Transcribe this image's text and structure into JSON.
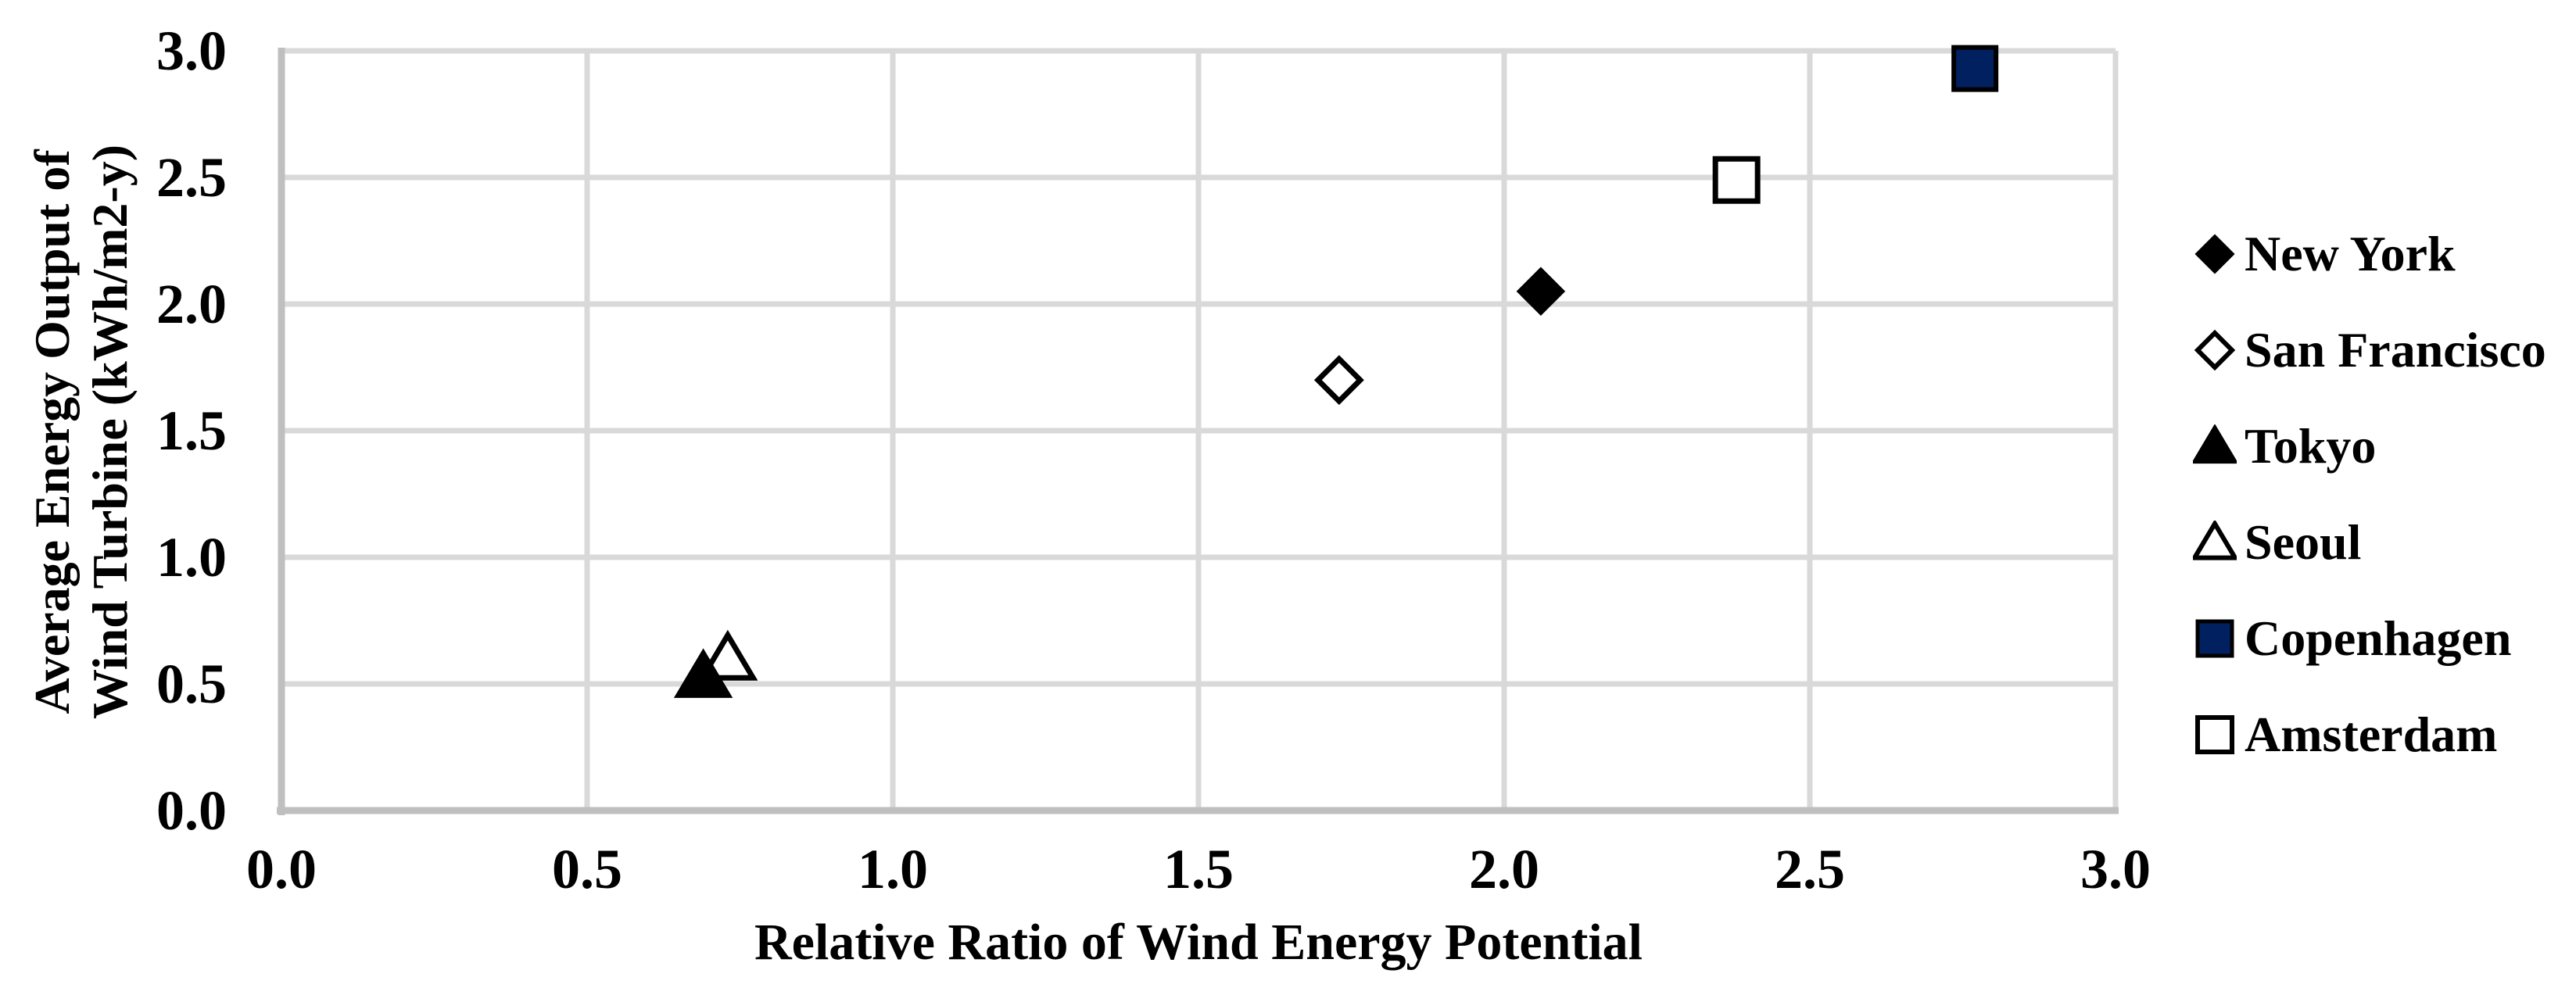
{
  "chart_data": {
    "type": "scatter",
    "xlabel": "Relative Ratio of Wind Energy Potential",
    "ylabel_lines": [
      "Average Energy Output of",
      "Wind Turbine (kWh/m2-y)"
    ],
    "xlim": [
      0.0,
      3.0
    ],
    "ylim": [
      0.0,
      3.0
    ],
    "x_ticks": [
      "0.0",
      "0.5",
      "1.0",
      "1.5",
      "2.0",
      "2.5",
      "3.0"
    ],
    "y_ticks": [
      "0.0",
      "0.5",
      "1.0",
      "1.5",
      "2.0",
      "2.5",
      "3.0"
    ],
    "grid": true,
    "legend_position": "right",
    "colors": {
      "gridline": "#d9d9d9",
      "axis": "#bfbfbf",
      "marker_black": "#000000",
      "marker_navy": "#002060",
      "open_fill": "#ffffff"
    },
    "series": [
      {
        "name": "New York",
        "marker": {
          "shape": "diamond",
          "style": "filled",
          "color": "#000000"
        },
        "points": [
          {
            "x": 2.06,
            "y": 2.05
          }
        ]
      },
      {
        "name": "San Francisco",
        "marker": {
          "shape": "diamond",
          "style": "open",
          "color": "#000000"
        },
        "points": [
          {
            "x": 1.73,
            "y": 1.7
          }
        ]
      },
      {
        "name": "Tokyo",
        "marker": {
          "shape": "triangle",
          "style": "filled",
          "color": "#000000"
        },
        "points": [
          {
            "x": 0.69,
            "y": 0.53
          }
        ]
      },
      {
        "name": "Seoul",
        "marker": {
          "shape": "triangle",
          "style": "open",
          "color": "#000000"
        },
        "points": [
          {
            "x": 0.73,
            "y": 0.6
          }
        ]
      },
      {
        "name": "Copenhagen",
        "marker": {
          "shape": "square",
          "style": "filled",
          "color": "#002060"
        },
        "points": [
          {
            "x": 2.77,
            "y": 2.93
          }
        ]
      },
      {
        "name": "Amsterdam",
        "marker": {
          "shape": "square",
          "style": "open",
          "color": "#000000"
        },
        "points": [
          {
            "x": 2.38,
            "y": 2.49
          }
        ]
      }
    ]
  }
}
